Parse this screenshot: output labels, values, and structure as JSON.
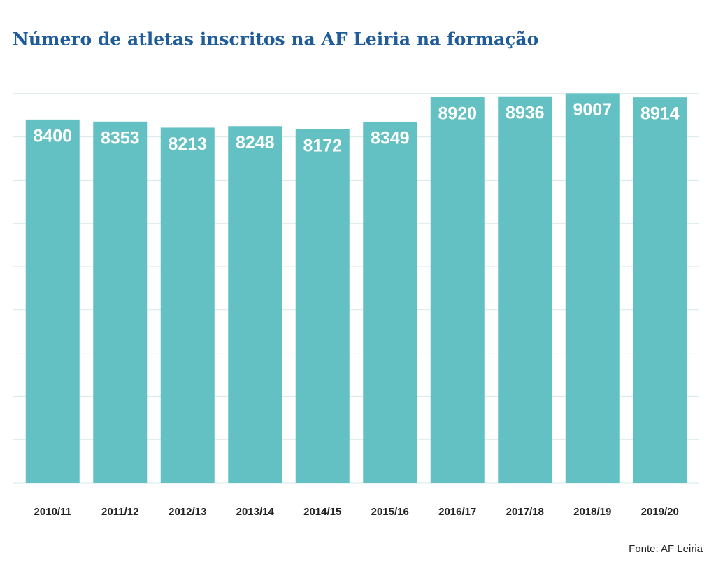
{
  "chart_data": {
    "type": "bar",
    "title": "Número de atletas inscritos na AF Leiria na formação",
    "categories": [
      "2010/11",
      "2011/12",
      "2012/13",
      "2013/14",
      "2014/15",
      "2015/16",
      "2016/17",
      "2017/18",
      "2018/19",
      "2019/20"
    ],
    "values": [
      8400,
      8353,
      8213,
      8248,
      8172,
      8349,
      8920,
      8936,
      9007,
      8914
    ],
    "color": "#64c1c3",
    "ylim": [
      0,
      9000
    ],
    "yticks": [
      0,
      1000,
      2000,
      3000,
      4000,
      5000,
      6000,
      7000,
      8000,
      9000
    ],
    "grid": true,
    "source": "Fonte: AF Leiria"
  }
}
